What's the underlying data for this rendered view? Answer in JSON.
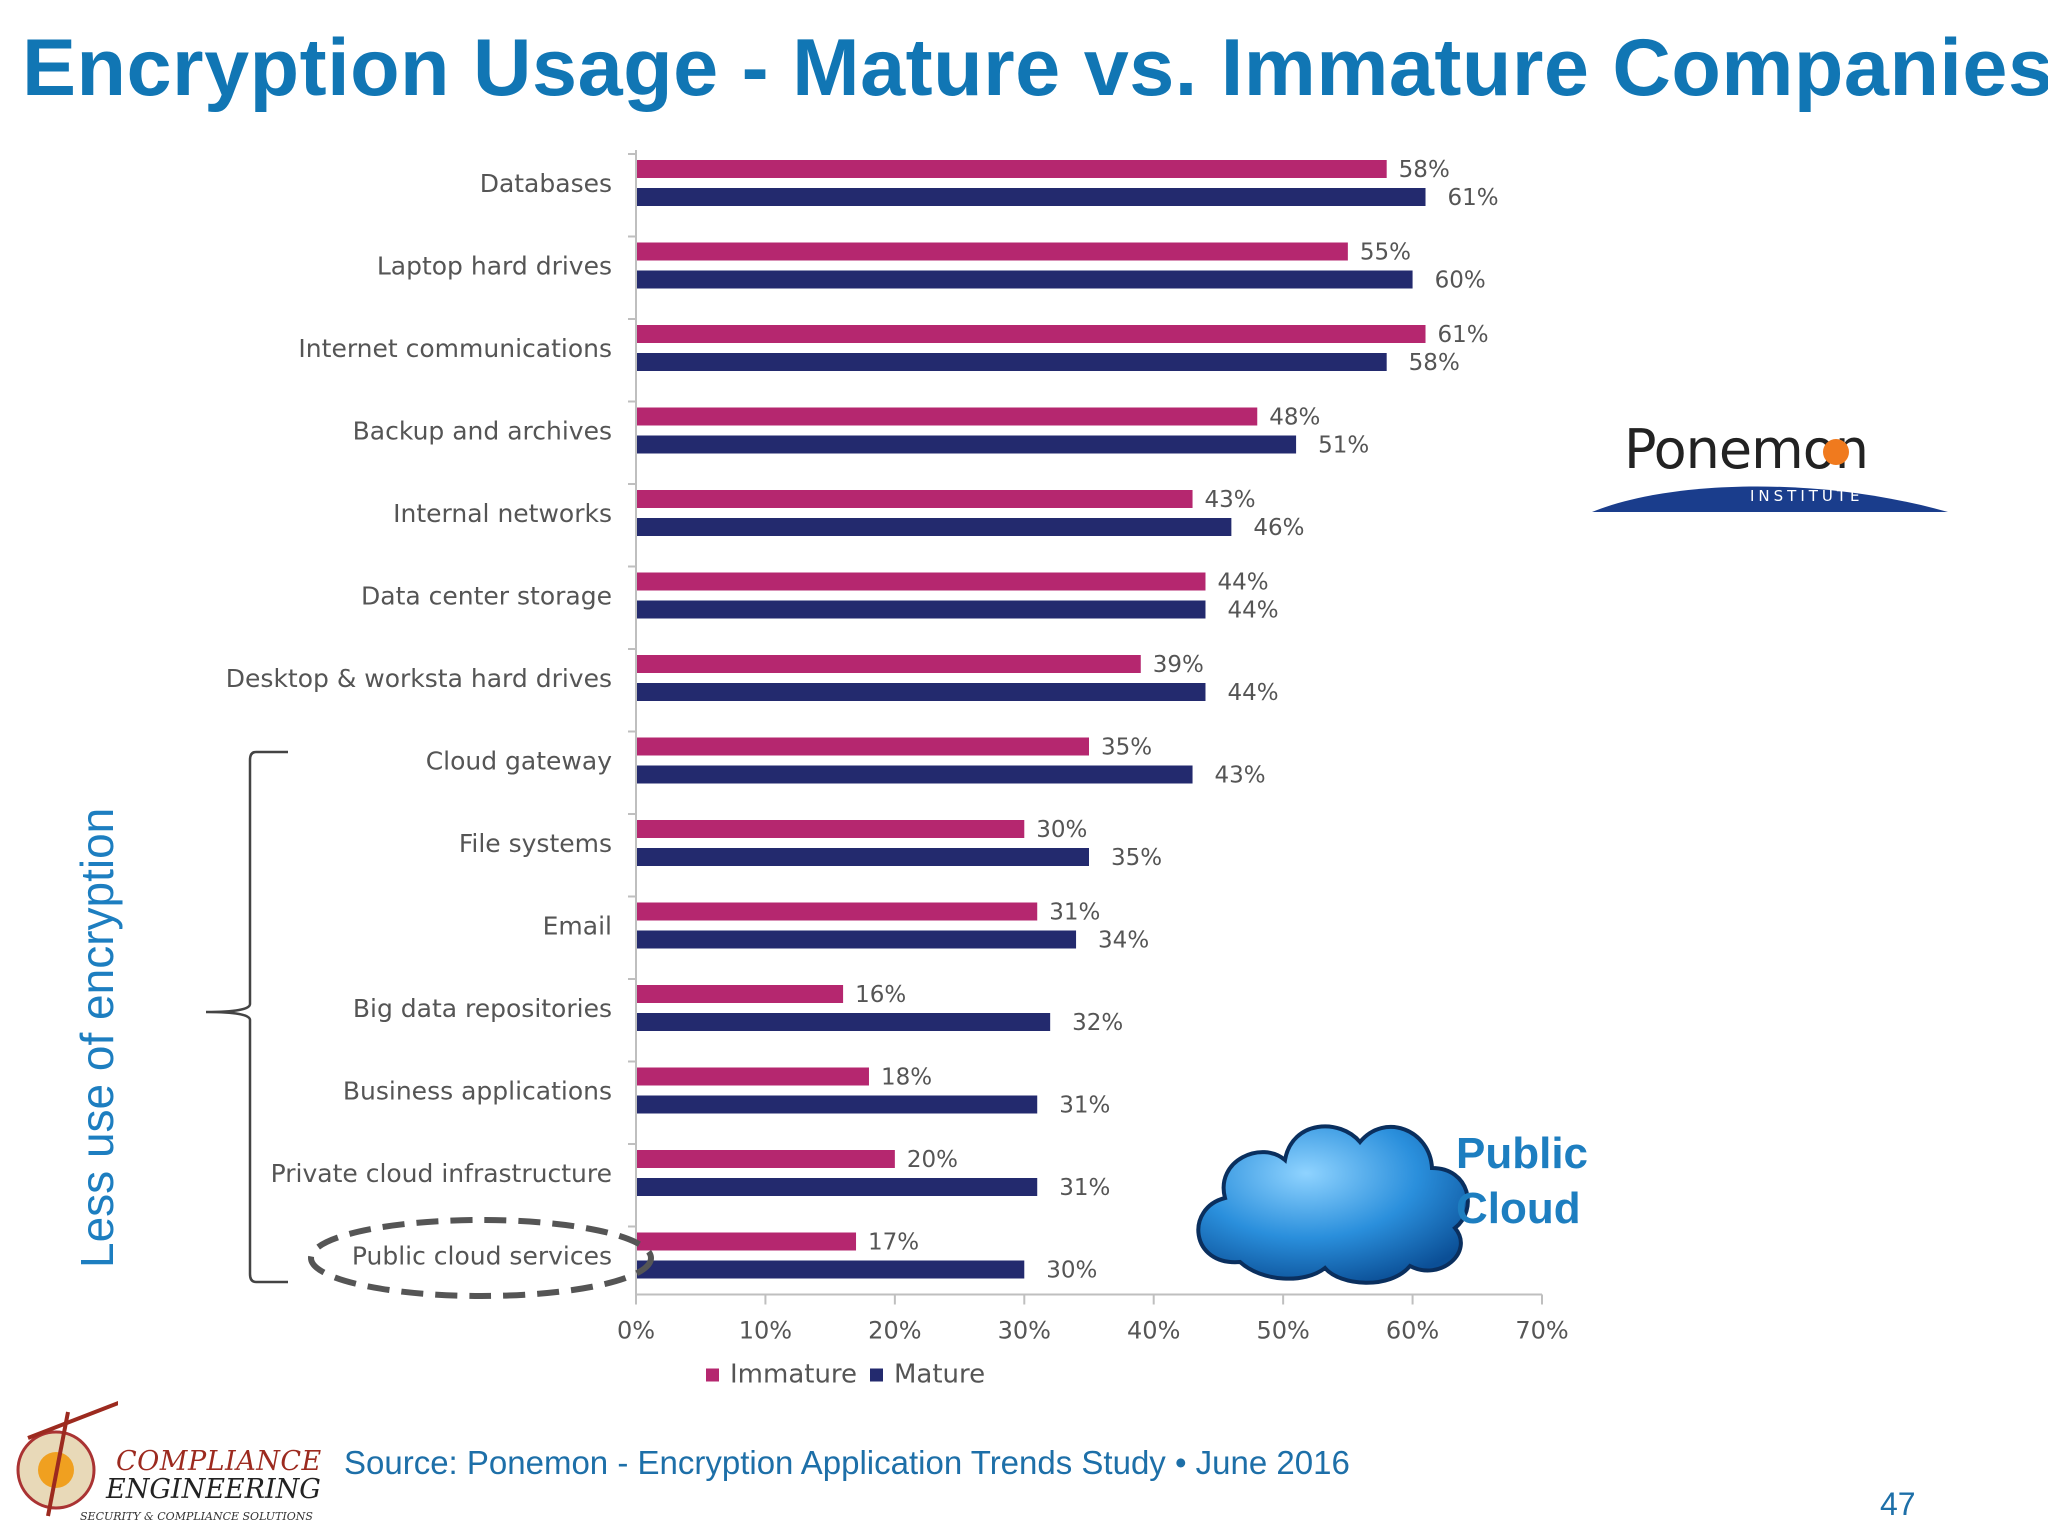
{
  "slide": {
    "title": "Encryption Usage - Mature vs. Immature Companies",
    "side_note": "Less use of encryption",
    "cloud_label_line1": "Public",
    "cloud_label_line2": "Cloud",
    "source": "Source: Ponemon - Encryption Application Trends Study • June 2016",
    "page_number": "47"
  },
  "logos": {
    "ponemon_word": "Ponemon",
    "ponemon_sub": "INSTITUTE",
    "ce_line1": "COMPLIANCE",
    "ce_line2": "ENGINEERING",
    "ce_tagline": "SECURITY & COMPLIANCE SOLUTIONS"
  },
  "colors": {
    "title": "#1176b4",
    "immature": "#b5276f",
    "mature": "#232a6e",
    "accent_text": "#1d7ec0",
    "ponemon_orange": "#f07a1e",
    "ponemon_navy": "#1a3d8c"
  },
  "chart_data": {
    "type": "bar",
    "orientation": "horizontal",
    "categories": [
      "Databases",
      "Laptop hard drives",
      "Internet communications",
      "Backup and archives",
      "Internal networks",
      "Data center storage",
      "Desktop & worksta hard drives",
      "Cloud gateway",
      "File systems",
      "Email",
      "Big data repositories",
      "Business applications",
      "Private cloud infrastructure",
      "Public cloud services"
    ],
    "series": [
      {
        "name": "Immature",
        "color": "#b5276f",
        "values": [
          58,
          55,
          61,
          48,
          43,
          44,
          39,
          35,
          30,
          31,
          16,
          18,
          20,
          17
        ]
      },
      {
        "name": "Mature",
        "color": "#232a6e",
        "values": [
          61,
          60,
          58,
          51,
          46,
          44,
          44,
          43,
          35,
          34,
          32,
          31,
          31,
          30
        ]
      }
    ],
    "value_suffix": "%",
    "xlim": [
      0,
      70
    ],
    "xticks": [
      "0%",
      "10%",
      "20%",
      "30%",
      "40%",
      "50%",
      "60%",
      "70%"
    ],
    "legend": [
      "Immature",
      "Mature"
    ],
    "legend_position": "bottom",
    "highlighted_category": "Public cloud services"
  }
}
